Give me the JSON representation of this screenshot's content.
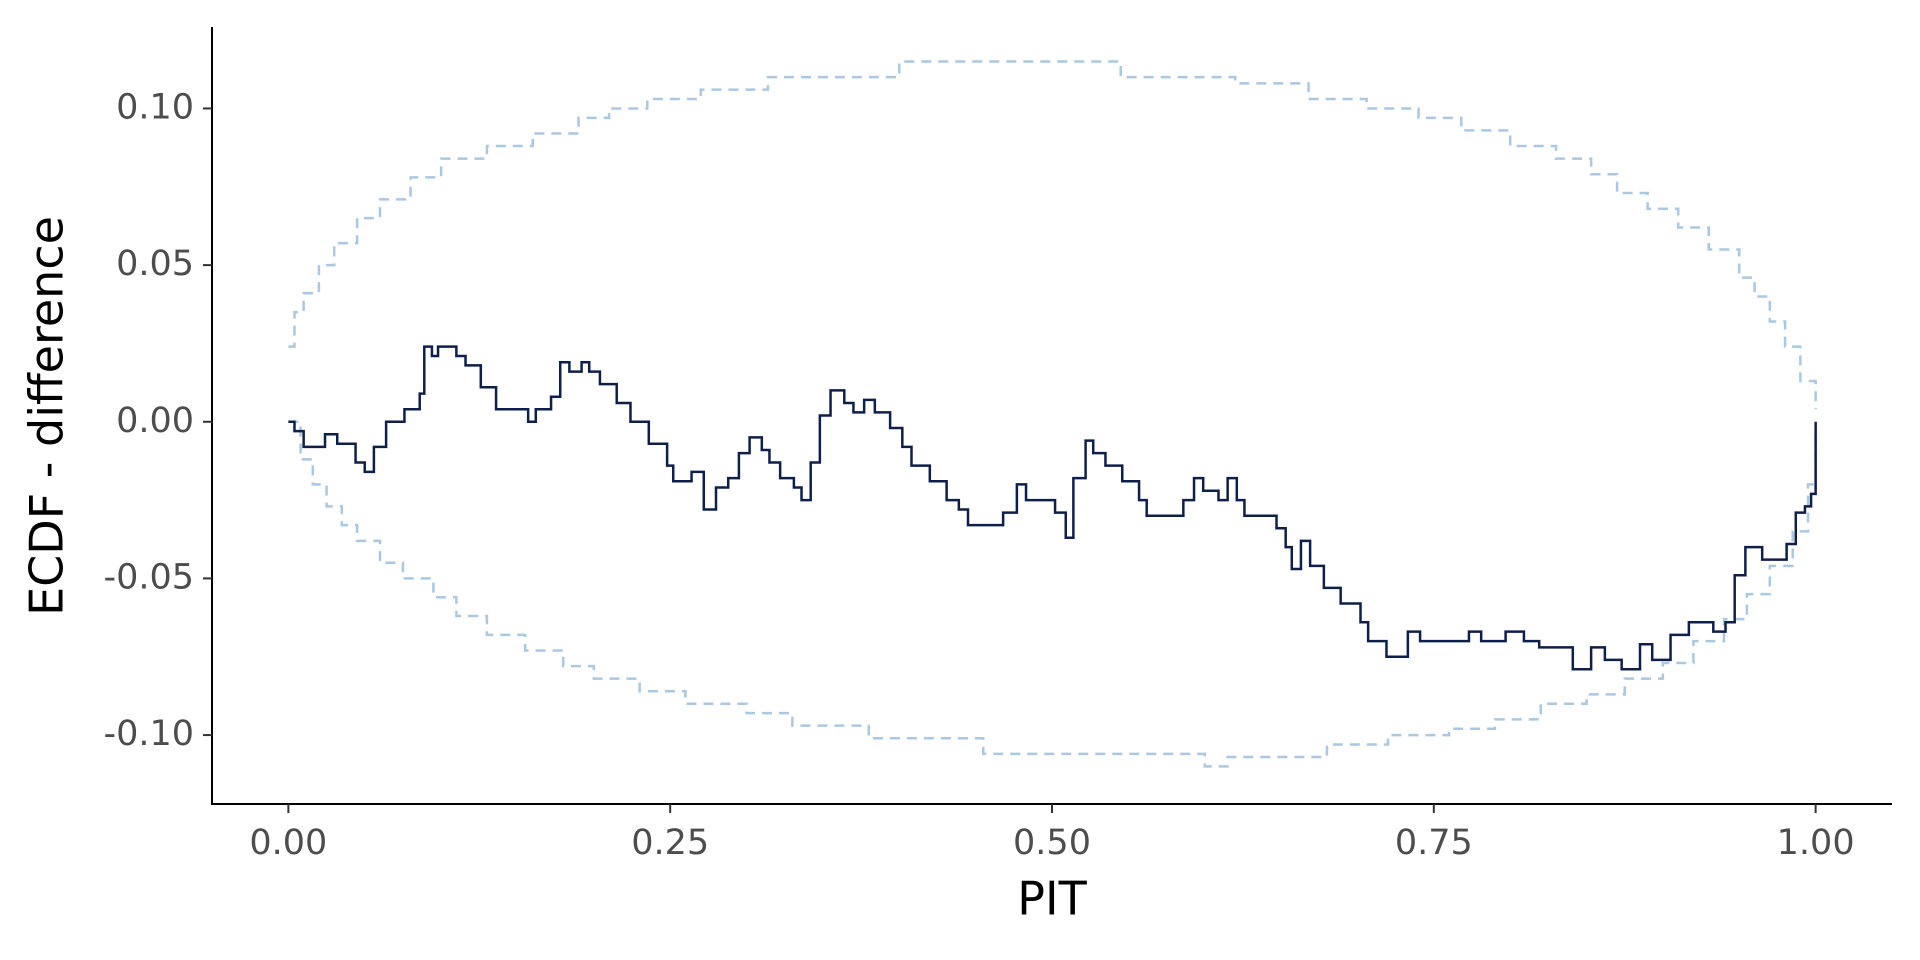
{
  "chart_data": {
    "type": "step",
    "xlabel": "PIT",
    "ylabel": "ECDF - difference",
    "xlim": [
      -0.05,
      1.05
    ],
    "ylim": [
      -0.122,
      0.126
    ],
    "xticks": [
      {
        "value": 0,
        "label": "0.00"
      },
      {
        "value": 0.25,
        "label": "0.25"
      },
      {
        "value": 0.5,
        "label": "0.50"
      },
      {
        "value": 0.75,
        "label": "0.75"
      },
      {
        "value": 1,
        "label": "1.00"
      }
    ],
    "yticks": [
      {
        "value": -0.1,
        "label": "-0.10"
      },
      {
        "value": -0.05,
        "label": "-0.05"
      },
      {
        "value": 0,
        "label": "0.00"
      },
      {
        "value": 0.05,
        "label": "0.05"
      },
      {
        "value": 0.1,
        "label": "0.10"
      }
    ],
    "series": [
      {
        "color": "#aac8e2",
        "dashed": true,
        "x": [
          0,
          0.004,
          0.01,
          0.02,
          0.03,
          0.045,
          0.06,
          0.08,
          0.1,
          0.13,
          0.16,
          0.19,
          0.21,
          0.235,
          0.27,
          0.314,
          0.4,
          0.545,
          0.62,
          0.668,
          0.706,
          0.74,
          0.768,
          0.8,
          0.83,
          0.853,
          0.87,
          0.89,
          0.91,
          0.93,
          0.95,
          0.96,
          0.97,
          0.98,
          0.99,
          1.0
        ],
        "values": [
          0.024,
          0.035,
          0.041,
          0.05,
          0.057,
          0.065,
          0.071,
          0.078,
          0.084,
          0.088,
          0.092,
          0.097,
          0.1,
          0.103,
          0.106,
          0.11,
          0.115,
          0.11,
          0.108,
          0.103,
          0.1,
          0.097,
          0.093,
          0.088,
          0.084,
          0.079,
          0.073,
          0.068,
          0.062,
          0.055,
          0.046,
          0.04,
          0.032,
          0.024,
          0.013,
          0.004
        ]
      },
      {
        "color": "#aac8e2",
        "dashed": true,
        "x": [
          0,
          0.008,
          0.016,
          0.025,
          0.035,
          0.045,
          0.06,
          0.075,
          0.095,
          0.11,
          0.13,
          0.155,
          0.18,
          0.2,
          0.23,
          0.26,
          0.3,
          0.33,
          0.38,
          0.455,
          0.6,
          0.615,
          0.68,
          0.72,
          0.76,
          0.79,
          0.82,
          0.85,
          0.875,
          0.9,
          0.92,
          0.94,
          0.955,
          0.97,
          0.985,
          0.995,
          1.0
        ],
        "values": [
          0,
          -0.012,
          -0.02,
          -0.027,
          -0.033,
          -0.038,
          -0.045,
          -0.05,
          -0.056,
          -0.062,
          -0.068,
          -0.073,
          -0.078,
          -0.082,
          -0.086,
          -0.09,
          -0.093,
          -0.097,
          -0.101,
          -0.106,
          -0.11,
          -0.107,
          -0.103,
          -0.1,
          -0.098,
          -0.095,
          -0.09,
          -0.087,
          -0.082,
          -0.077,
          -0.07,
          -0.063,
          -0.055,
          -0.046,
          -0.035,
          -0.02,
          -0.003
        ]
      },
      {
        "color": "#0f1f4b",
        "dashed": false,
        "x": [
          0,
          0.004,
          0.01,
          0.024,
          0.032,
          0.044,
          0.05,
          0.056,
          0.064,
          0.076,
          0.086,
          0.089,
          0.094,
          0.098,
          0.11,
          0.116,
          0.126,
          0.136,
          0.157,
          0.162,
          0.172,
          0.178,
          0.184,
          0.192,
          0.197,
          0.204,
          0.215,
          0.224,
          0.236,
          0.248,
          0.252,
          0.264,
          0.272,
          0.28,
          0.288,
          0.295,
          0.302,
          0.31,
          0.315,
          0.322,
          0.331,
          0.336,
          0.342,
          0.348,
          0.355,
          0.364,
          0.37,
          0.377,
          0.384,
          0.394,
          0.402,
          0.408,
          0.42,
          0.431,
          0.439,
          0.445,
          0.468,
          0.477,
          0.483,
          0.502,
          0.509,
          0.514,
          0.522,
          0.527,
          0.535,
          0.546,
          0.557,
          0.562,
          0.586,
          0.593,
          0.599,
          0.609,
          0.615,
          0.621,
          0.626,
          0.647,
          0.653,
          0.657,
          0.663,
          0.669,
          0.678,
          0.689,
          0.702,
          0.707,
          0.719,
          0.733,
          0.741,
          0.773,
          0.781,
          0.797,
          0.809,
          0.819,
          0.841,
          0.853,
          0.862,
          0.873,
          0.885,
          0.893,
          0.905,
          0.917,
          0.933,
          0.941,
          0.947,
          0.954,
          0.965,
          0.981,
          0.987,
          0.993,
          0.997,
          1.0
        ],
        "values": [
          0,
          -0.003,
          -0.008,
          -0.004,
          -0.007,
          -0.013,
          -0.016,
          -0.008,
          0,
          0.004,
          0.009,
          0.024,
          0.021,
          0.024,
          0.021,
          0.018,
          0.011,
          0.004,
          0,
          0.004,
          0.008,
          0.019,
          0.016,
          0.019,
          0.016,
          0.012,
          0.006,
          0,
          -0.007,
          -0.014,
          -0.019,
          -0.016,
          -0.028,
          -0.021,
          -0.018,
          -0.01,
          -0.005,
          -0.009,
          -0.013,
          -0.018,
          -0.021,
          -0.025,
          -0.013,
          0.002,
          0.01,
          0.006,
          0.003,
          0.007,
          0.003,
          -0.002,
          -0.008,
          -0.014,
          -0.019,
          -0.025,
          -0.028,
          -0.033,
          -0.029,
          -0.02,
          -0.025,
          -0.029,
          -0.037,
          -0.018,
          -0.006,
          -0.01,
          -0.014,
          -0.019,
          -0.025,
          -0.03,
          -0.025,
          -0.018,
          -0.022,
          -0.025,
          -0.018,
          -0.025,
          -0.03,
          -0.034,
          -0.04,
          -0.047,
          -0.038,
          -0.046,
          -0.053,
          -0.058,
          -0.064,
          -0.07,
          -0.075,
          -0.067,
          -0.07,
          -0.067,
          -0.07,
          -0.067,
          -0.07,
          -0.072,
          -0.079,
          -0.072,
          -0.076,
          -0.079,
          -0.071,
          -0.076,
          -0.068,
          -0.064,
          -0.067,
          -0.064,
          -0.049,
          -0.04,
          -0.044,
          -0.039,
          -0.029,
          -0.027,
          -0.023,
          0
        ]
      }
    ]
  }
}
